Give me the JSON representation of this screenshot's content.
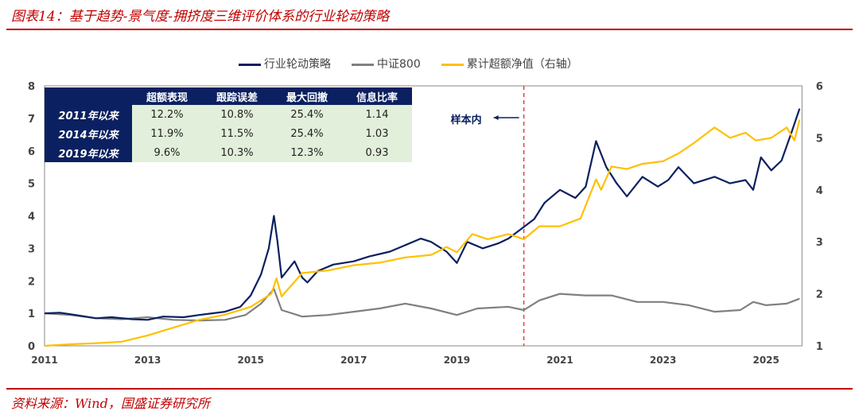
{
  "title": "图表14：基于趋势-景气度-拥挤度三维评价体系的行业轮动策略",
  "source": "资料来源：Wind，国盛证券研究所",
  "table": {
    "headers": [
      "",
      "超额表现",
      "跟踪误差",
      "最大回撤",
      "信息比率"
    ],
    "rows": [
      [
        "2011年以来",
        "12.2%",
        "10.8%",
        "25.4%",
        "1.14"
      ],
      [
        "2014年以来",
        "11.9%",
        "11.5%",
        "25.4%",
        "1.03"
      ],
      [
        "2019年以来",
        "9.6%",
        "10.3%",
        "12.3%",
        "0.93"
      ]
    ]
  },
  "annotation": "样本内",
  "chart_data": {
    "type": "line",
    "xlim": [
      2011,
      2025.65
    ],
    "x_ticks": [
      "2011",
      "2013",
      "2015",
      "2017",
      "2019",
      "2021",
      "2023",
      "2025"
    ],
    "ylim": [
      0,
      8
    ],
    "y_ticks": [
      "0",
      "1",
      "2",
      "3",
      "4",
      "5",
      "6",
      "7",
      "8"
    ],
    "y2lim": [
      1,
      6
    ],
    "y2_ticks": [
      "1",
      "2",
      "3",
      "4",
      "5",
      "6"
    ],
    "split_x": 2020.3,
    "series": [
      {
        "name": "行业轮动策略",
        "axis": "left",
        "color": "#0b2060",
        "points": [
          [
            2011,
            1.0
          ],
          [
            2011.3,
            1.02
          ],
          [
            2011.6,
            0.95
          ],
          [
            2012,
            0.85
          ],
          [
            2012.3,
            0.88
          ],
          [
            2012.7,
            0.82
          ],
          [
            2013,
            0.8
          ],
          [
            2013.3,
            0.9
          ],
          [
            2013.7,
            0.88
          ],
          [
            2014,
            0.95
          ],
          [
            2014.5,
            1.05
          ],
          [
            2014.8,
            1.2
          ],
          [
            2015,
            1.55
          ],
          [
            2015.2,
            2.2
          ],
          [
            2015.35,
            3.0
          ],
          [
            2015.45,
            4.0
          ],
          [
            2015.52,
            3.2
          ],
          [
            2015.6,
            2.1
          ],
          [
            2015.7,
            2.3
          ],
          [
            2015.85,
            2.6
          ],
          [
            2016,
            2.1
          ],
          [
            2016.1,
            1.95
          ],
          [
            2016.3,
            2.3
          ],
          [
            2016.6,
            2.5
          ],
          [
            2017,
            2.6
          ],
          [
            2017.3,
            2.75
          ],
          [
            2017.7,
            2.9
          ],
          [
            2018,
            3.1
          ],
          [
            2018.3,
            3.3
          ],
          [
            2018.5,
            3.2
          ],
          [
            2018.8,
            2.9
          ],
          [
            2019,
            2.55
          ],
          [
            2019.2,
            3.2
          ],
          [
            2019.5,
            3.0
          ],
          [
            2019.8,
            3.15
          ],
          [
            2020,
            3.3
          ],
          [
            2020.25,
            3.6
          ],
          [
            2020.5,
            3.9
          ],
          [
            2020.7,
            4.4
          ],
          [
            2021,
            4.8
          ],
          [
            2021.3,
            4.55
          ],
          [
            2021.5,
            4.9
          ],
          [
            2021.7,
            6.3
          ],
          [
            2021.9,
            5.5
          ],
          [
            2022.1,
            5.0
          ],
          [
            2022.3,
            4.6
          ],
          [
            2022.6,
            5.2
          ],
          [
            2022.9,
            4.9
          ],
          [
            2023.1,
            5.1
          ],
          [
            2023.3,
            5.5
          ],
          [
            2023.6,
            5.0
          ],
          [
            2024,
            5.2
          ],
          [
            2024.3,
            5.0
          ],
          [
            2024.6,
            5.1
          ],
          [
            2024.75,
            4.8
          ],
          [
            2024.9,
            5.8
          ],
          [
            2025.1,
            5.4
          ],
          [
            2025.3,
            5.7
          ],
          [
            2025.5,
            6.6
          ],
          [
            2025.65,
            7.3
          ]
        ]
      },
      {
        "name": "中证800",
        "axis": "left",
        "color": "#808080",
        "points": [
          [
            2011,
            1.0
          ],
          [
            2011.5,
            0.95
          ],
          [
            2012,
            0.85
          ],
          [
            2012.5,
            0.82
          ],
          [
            2013,
            0.88
          ],
          [
            2013.5,
            0.8
          ],
          [
            2014,
            0.78
          ],
          [
            2014.5,
            0.8
          ],
          [
            2014.9,
            0.95
          ],
          [
            2015.2,
            1.3
          ],
          [
            2015.45,
            1.75
          ],
          [
            2015.6,
            1.1
          ],
          [
            2016,
            0.9
          ],
          [
            2016.5,
            0.95
          ],
          [
            2017,
            1.05
          ],
          [
            2017.5,
            1.15
          ],
          [
            2018,
            1.3
          ],
          [
            2018.5,
            1.15
          ],
          [
            2019,
            0.95
          ],
          [
            2019.4,
            1.15
          ],
          [
            2020,
            1.2
          ],
          [
            2020.3,
            1.1
          ],
          [
            2020.6,
            1.4
          ],
          [
            2021,
            1.6
          ],
          [
            2021.5,
            1.55
          ],
          [
            2022,
            1.55
          ],
          [
            2022.5,
            1.35
          ],
          [
            2023,
            1.35
          ],
          [
            2023.5,
            1.25
          ],
          [
            2024,
            1.05
          ],
          [
            2024.5,
            1.1
          ],
          [
            2024.75,
            1.35
          ],
          [
            2025,
            1.25
          ],
          [
            2025.4,
            1.3
          ],
          [
            2025.65,
            1.45
          ]
        ]
      },
      {
        "name": "累计超额净值（右轴）",
        "axis": "right",
        "color": "#ffc000",
        "points": [
          [
            2011,
            1.0
          ],
          [
            2011.5,
            1.03
          ],
          [
            2012,
            1.05
          ],
          [
            2012.5,
            1.08
          ],
          [
            2013,
            1.2
          ],
          [
            2013.5,
            1.35
          ],
          [
            2014,
            1.5
          ],
          [
            2014.5,
            1.6
          ],
          [
            2015,
            1.75
          ],
          [
            2015.4,
            2.0
          ],
          [
            2015.5,
            2.3
          ],
          [
            2015.6,
            1.95
          ],
          [
            2016,
            2.4
          ],
          [
            2016.5,
            2.45
          ],
          [
            2017,
            2.55
          ],
          [
            2017.5,
            2.6
          ],
          [
            2018,
            2.7
          ],
          [
            2018.5,
            2.75
          ],
          [
            2018.8,
            2.9
          ],
          [
            2019,
            2.8
          ],
          [
            2019.3,
            3.15
          ],
          [
            2019.6,
            3.05
          ],
          [
            2020,
            3.15
          ],
          [
            2020.3,
            3.05
          ],
          [
            2020.6,
            3.3
          ],
          [
            2021,
            3.3
          ],
          [
            2021.4,
            3.45
          ],
          [
            2021.7,
            4.2
          ],
          [
            2021.8,
            4.0
          ],
          [
            2022,
            4.45
          ],
          [
            2022.3,
            4.4
          ],
          [
            2022.6,
            4.5
          ],
          [
            2023,
            4.55
          ],
          [
            2023.3,
            4.7
          ],
          [
            2023.6,
            4.9
          ],
          [
            2024,
            5.2
          ],
          [
            2024.3,
            5.0
          ],
          [
            2024.6,
            5.1
          ],
          [
            2024.8,
            4.95
          ],
          [
            2025.1,
            5.0
          ],
          [
            2025.4,
            5.2
          ],
          [
            2025.55,
            4.95
          ],
          [
            2025.65,
            5.35
          ]
        ]
      }
    ]
  }
}
